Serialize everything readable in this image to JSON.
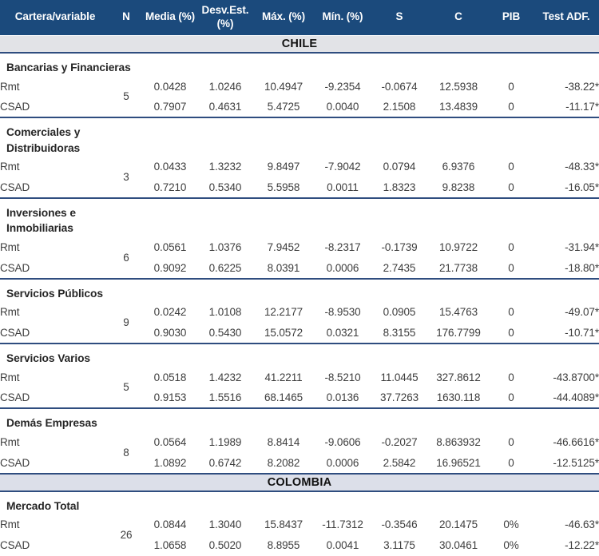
{
  "table": {
    "columns": [
      {
        "key": "label",
        "label": "Cartera/variable"
      },
      {
        "key": "n",
        "label": "N"
      },
      {
        "key": "media",
        "label": "Media (%)"
      },
      {
        "key": "desv",
        "label": "Desv.Est. (%)"
      },
      {
        "key": "max",
        "label": "Máx. (%)"
      },
      {
        "key": "min",
        "label": "Mín. (%)"
      },
      {
        "key": "s",
        "label": "S"
      },
      {
        "key": "c",
        "label": "C"
      },
      {
        "key": "pib",
        "label": "PIB"
      },
      {
        "key": "adf",
        "label": "Test ADF."
      }
    ],
    "sections": [
      {
        "label": "CHILE",
        "groups": [
          {
            "title": "Bancarias y Financieras",
            "n": "5",
            "rows": [
              {
                "label": "Rmt",
                "values": [
                  "0.0428",
                  "1.0246",
                  "10.4947",
                  "-9.2354",
                  "-0.0674",
                  "12.5938",
                  "0",
                  "-38.22*"
                ]
              },
              {
                "label": "CSAD",
                "values": [
                  "0.7907",
                  "0.4631",
                  "5.4725",
                  "0.0040",
                  "2.1508",
                  "13.4839",
                  "0",
                  "-11.17*"
                ]
              }
            ]
          },
          {
            "title": "Comerciales y\nDistribuidoras",
            "n": "3",
            "rows": [
              {
                "label": "Rmt",
                "values": [
                  "0.0433",
                  "1.3232",
                  "9.8497",
                  "-7.9042",
                  "0.0794",
                  "6.9376",
                  "0",
                  "-48.33*"
                ]
              },
              {
                "label": "CSAD",
                "values": [
                  "0.7210",
                  "0.5340",
                  "5.5958",
                  "0.0011",
                  "1.8323",
                  "9.8238",
                  "0",
                  "-16.05*"
                ]
              }
            ]
          },
          {
            "title": "Inversiones e\nInmobiliarias",
            "n": "6",
            "rows": [
              {
                "label": "Rmt",
                "values": [
                  "0.0561",
                  "1.0376",
                  "7.9452",
                  "-8.2317",
                  "-0.1739",
                  "10.9722",
                  "0",
                  "-31.94*"
                ]
              },
              {
                "label": "CSAD",
                "values": [
                  "0.9092",
                  "0.6225",
                  "8.0391",
                  "0.0006",
                  "2.7435",
                  "21.7738",
                  "0",
                  "-18.80*"
                ]
              }
            ]
          },
          {
            "title": "Servicios Públicos",
            "n": "9",
            "rows": [
              {
                "label": "Rmt",
                "values": [
                  "0.0242",
                  "1.0108",
                  "12.2177",
                  "-8.9530",
                  "0.0905",
                  "15.4763",
                  "0",
                  "-49.07*"
                ]
              },
              {
                "label": "CSAD",
                "values": [
                  "0.9030",
                  "0.5430",
                  "15.0572",
                  "0.0321",
                  "8.3155",
                  "176.7799",
                  "0",
                  "-10.71*"
                ]
              }
            ]
          },
          {
            "title": "Servicios Varios",
            "n": "5",
            "rows": [
              {
                "label": "Rmt",
                "values": [
                  "0.0518",
                  "1.4232",
                  "41.2211",
                  "-8.5210",
                  "11.0445",
                  "327.8612",
                  "0",
                  "-43.8700*"
                ]
              },
              {
                "label": "CSAD",
                "values": [
                  "0.9153",
                  "1.5516",
                  "68.1465",
                  "0.0136",
                  "37.7263",
                  "1630.118",
                  "0",
                  "-44.4089*"
                ]
              }
            ]
          },
          {
            "title": "Demás Empresas",
            "n": "8",
            "rows": [
              {
                "label": "Rmt",
                "values": [
                  "0.0564",
                  "1.1989",
                  "8.8414",
                  "-9.0606",
                  "-0.2027",
                  "8.863932",
                  "0",
                  "-46.6616*"
                ]
              },
              {
                "label": "CSAD",
                "values": [
                  "1.0892",
                  "0.6742",
                  "8.2082",
                  "0.0006",
                  "2.5842",
                  "16.96521",
                  "0",
                  "-12.5125*"
                ]
              }
            ]
          }
        ]
      },
      {
        "label": "COLOMBIA",
        "groups": [
          {
            "title": "Mercado Total",
            "n": "26",
            "rows": [
              {
                "label": "Rmt",
                "values": [
                  "0.0844",
                  "1.3040",
                  "15.8437",
                  "-11.7312",
                  "-0.3546",
                  "20.1475",
                  "0%",
                  "-46.63*"
                ]
              },
              {
                "label": "CSAD",
                "values": [
                  "1.0658",
                  "0.5020",
                  "8.8955",
                  "0.0041",
                  "3.1175",
                  "30.0461",
                  "0%",
                  "-12.22*"
                ]
              }
            ]
          }
        ]
      }
    ]
  },
  "colors": {
    "header_bg": "#1b4a7c",
    "header_text": "#ffffff",
    "band_chile_bg": "#e2e3e7",
    "band_colombia_bg": "#dcdfe9",
    "band_text": "#111111",
    "divider": "#2f4d7f",
    "body_text": "#3d3d3d",
    "title_text": "#262626"
  }
}
